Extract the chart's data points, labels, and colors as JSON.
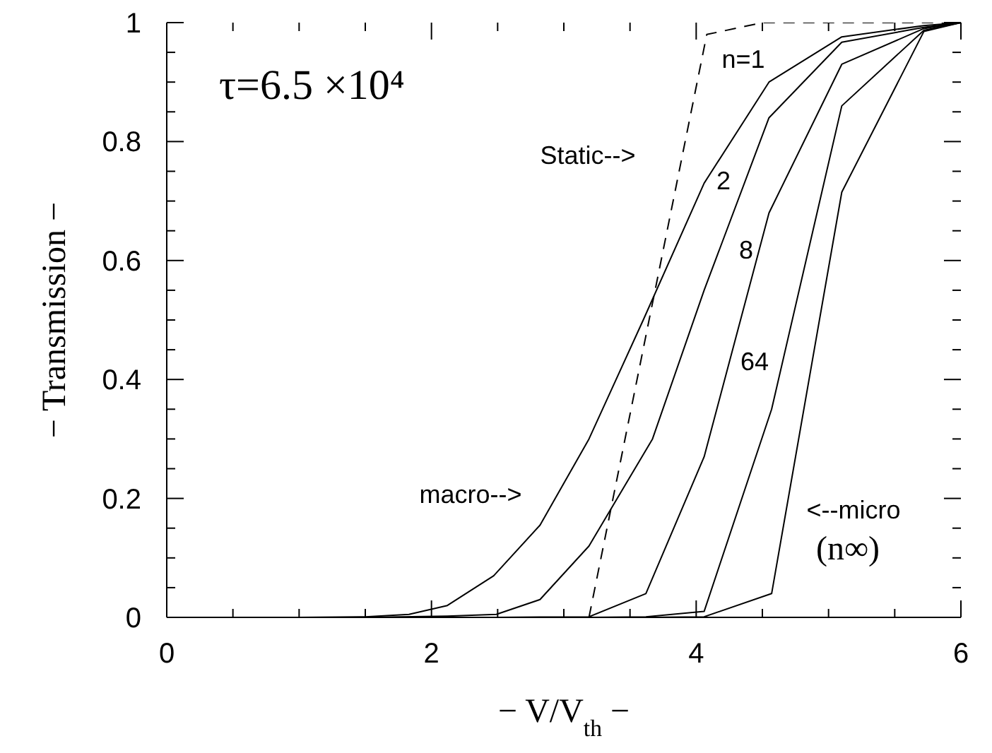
{
  "chart_data": {
    "type": "line",
    "xlabel": "− V/V$_{th}$ −",
    "ylabel": "− Transmission −",
    "xlim": [
      0,
      6
    ],
    "ylim": [
      0,
      1
    ],
    "xticks": [
      0,
      {
        "value": 0.5,
        "label": null
      },
      {
        "value": 1,
        "label": null
      },
      {
        "value": 1.5,
        "label": null
      },
      2,
      {
        "value": 2.5,
        "label": null
      },
      {
        "value": 3,
        "label": null
      },
      {
        "value": 3.5,
        "label": null
      },
      4,
      {
        "value": 4.5,
        "label": null
      },
      {
        "value": 5,
        "label": null
      },
      {
        "value": 5.5,
        "label": null
      },
      6
    ],
    "yticks": [
      0,
      {
        "value": 0.05,
        "label": null
      },
      {
        "value": 0.1,
        "label": null
      },
      {
        "value": 0.15,
        "label": null
      },
      0.2,
      {
        "value": 0.25,
        "label": null
      },
      {
        "value": 0.3,
        "label": null
      },
      {
        "value": 0.35,
        "label": null
      },
      0.4,
      {
        "value": 0.45,
        "label": null
      },
      {
        "value": 0.5,
        "label": null
      },
      {
        "value": 0.55,
        "label": null
      },
      0.6,
      {
        "value": 0.65,
        "label": null
      },
      {
        "value": 0.7,
        "label": null
      },
      {
        "value": 0.75,
        "label": null
      },
      0.8,
      {
        "value": 0.85,
        "label": null
      },
      {
        "value": 0.9,
        "label": null
      },
      {
        "value": 0.95,
        "label": null
      },
      1
    ],
    "marker": "none",
    "series": [
      {
        "color": "#000000",
        "line_style": "solid",
        "x": [
          1.0,
          1.5,
          1.83,
          2.12,
          2.47,
          2.82,
          3.19,
          3.6,
          4.06,
          4.55,
          5.1,
          5.72,
          6
        ],
        "values": [
          0,
          0.001,
          0.005,
          0.02,
          0.07,
          0.155,
          0.3,
          0.5,
          0.73,
          0.9,
          0.976,
          0.995,
          1
        ]
      },
      {
        "color": "#000000",
        "line_style": "solid",
        "x": [
          1.5,
          2.12,
          2.49,
          2.82,
          3.19,
          3.67,
          4.06,
          4.55,
          5.1,
          5.72,
          6
        ],
        "values": [
          0,
          0.002,
          0.005,
          0.03,
          0.12,
          0.3,
          0.55,
          0.84,
          0.967,
          0.992,
          1
        ]
      },
      {
        "color": "#000000",
        "line_style": "solid",
        "x": [
          2.5,
          3.19,
          3.62,
          4.06,
          4.55,
          5.1,
          5.72,
          6
        ],
        "values": [
          0,
          0.001,
          0.04,
          0.27,
          0.68,
          0.93,
          0.99,
          1
        ]
      },
      {
        "color": "#000000",
        "line_style": "solid",
        "x": [
          3.19,
          3.62,
          4.06,
          4.57,
          5.1,
          5.72,
          6
        ],
        "values": [
          0,
          0.001,
          0.01,
          0.35,
          0.86,
          0.987,
          1
        ]
      },
      {
        "color": "#000000",
        "line_style": "solid",
        "x": [
          3.62,
          4.06,
          4.57,
          5.1,
          5.72,
          6
        ],
        "values": [
          0,
          0.001,
          0.04,
          0.715,
          0.985,
          1
        ]
      },
      {
        "color": "#000000",
        "line_style": "dashed",
        "x": [
          3.19,
          4.08,
          4.5,
          6
        ],
        "values": [
          0,
          0.98,
          1,
          1
        ]
      }
    ],
    "annotations": [
      "τ=6.5 ×10⁴",
      "n=1",
      "2",
      "8",
      "64",
      "Static-->",
      "macro-->",
      "<--micro",
      "(n∞)"
    ]
  }
}
